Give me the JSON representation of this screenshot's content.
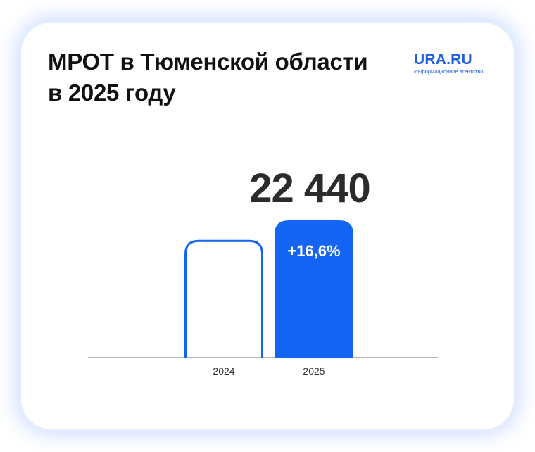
{
  "header": {
    "title_line1": "МРОТ в Тюменской области",
    "title_line2": "в 2025 году"
  },
  "logo": {
    "name": "URA.RU",
    "tagline": "Информационное агентство"
  },
  "colors": {
    "accent": "#1565f5",
    "text": "#111111",
    "value_text": "#2b2b2b",
    "axis": "#9a9a9a"
  },
  "chart_data": {
    "type": "bar",
    "categories": [
      "2024",
      "2025"
    ],
    "values": [
      19243,
      22440
    ],
    "value_label": "22 440",
    "change_label": "+16,6%",
    "ylim": [
      0,
      22440
    ],
    "grid": false
  }
}
